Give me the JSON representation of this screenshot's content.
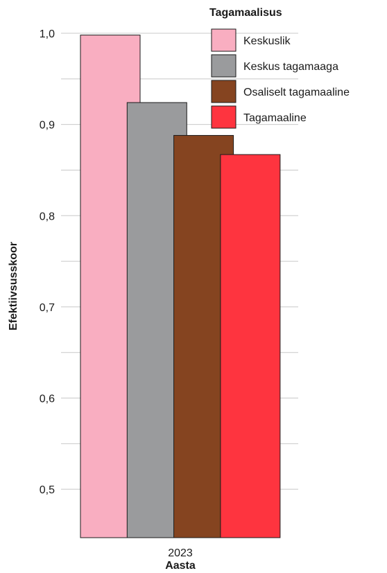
{
  "chart_data": {
    "type": "bar",
    "categories": [
      "2023"
    ],
    "series": [
      {
        "name": "Keskuslik",
        "values": [
          0.998
        ],
        "color": "#f9aec1"
      },
      {
        "name": "Keskus tagamaaga",
        "values": [
          0.924
        ],
        "color": "#9a9b9d"
      },
      {
        "name": "Osaliselt tagamaaline",
        "values": [
          0.888
        ],
        "color": "#854420"
      },
      {
        "name": "Tagamaaline",
        "values": [
          0.867
        ],
        "color": "#fe343f"
      }
    ],
    "xlabel": "Aasta",
    "ylabel": "Efektiivsusskoor",
    "ylim": [
      0.45,
      1.0
    ],
    "yticks": [
      "0,5",
      "0,6",
      "0,7",
      "0,8",
      "0,9",
      "1,0"
    ],
    "ytick_values": [
      0.5,
      0.6,
      0.7,
      0.8,
      0.9,
      1.0
    ],
    "grid": true,
    "legend": {
      "title": "Tagamaalisus",
      "position": "top-right"
    }
  }
}
